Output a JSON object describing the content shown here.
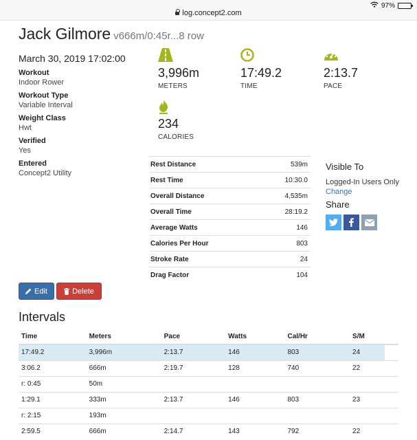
{
  "browser": {
    "url": "log.concept2.com",
    "battery": "97%",
    "battery_level": 0.97
  },
  "header": {
    "name": "Jack Gilmore",
    "subtitle": "v666m/0:45r...8 row"
  },
  "workout": {
    "date": "March 30, 2019 17:02:00",
    "details": [
      {
        "label": "Workout",
        "value": "Indoor Rower"
      },
      {
        "label": "Workout Type",
        "value": "Variable Interval"
      },
      {
        "label": "Weight Class",
        "value": "Hwt"
      },
      {
        "label": "Verified",
        "value": "Yes"
      },
      {
        "label": "Entered",
        "value": "Concept2 Utility"
      }
    ]
  },
  "stats": {
    "meters": {
      "value": "3,996m",
      "label": "METERS",
      "icon": "road-icon"
    },
    "time": {
      "value": "17:49.2",
      "label": "TIME",
      "icon": "clock-icon"
    },
    "pace": {
      "value": "2:13.7",
      "label": "PACE",
      "icon": "speedometer-icon"
    },
    "calories": {
      "value": "234",
      "label": "CALORIES",
      "icon": "flame-icon"
    },
    "accent": "#a5b51c"
  },
  "metrics": [
    {
      "label": "Rest Distance",
      "value": "539m"
    },
    {
      "label": "Rest Time",
      "value": "10:30.0"
    },
    {
      "label": "Overall Distance",
      "value": "4,535m"
    },
    {
      "label": "Overall Time",
      "value": "28:19.2"
    },
    {
      "label": "Average Watts",
      "value": "146"
    },
    {
      "label": "Calories Per Hour",
      "value": "803"
    },
    {
      "label": "Stroke Rate",
      "value": "24"
    },
    {
      "label": "Drag Factor",
      "value": "104"
    }
  ],
  "visibility": {
    "heading": "Visible To",
    "value": "Logged-In Users Only",
    "change_label": "Change",
    "share_heading": "Share",
    "share": [
      {
        "icon": "twitter-icon",
        "color": "#55acee"
      },
      {
        "icon": "facebook-icon",
        "color": "#3b5998"
      },
      {
        "icon": "email-icon",
        "color": "#8fa0b3"
      }
    ]
  },
  "actions": {
    "edit_label": "Edit",
    "delete_label": "Delete"
  },
  "intervals": {
    "title": "Intervals",
    "columns": [
      "Time",
      "Meters",
      "Pace",
      "Watts",
      "Cal/Hr",
      "S/M"
    ],
    "rows": [
      [
        "17:49.2",
        "3,996m",
        "2:13.7",
        "146",
        "803",
        "24"
      ],
      [
        "3:06.2",
        "666m",
        "2:19.7",
        "128",
        "740",
        "22"
      ],
      [
        "r: 0:45",
        "50m",
        "",
        "",
        "",
        ""
      ],
      [
        "1:29.1",
        "333m",
        "2:13.7",
        "146",
        "803",
        "23"
      ],
      [
        "r: 2:15",
        "193m",
        "",
        "",
        "",
        ""
      ],
      [
        "2:59.5",
        "666m",
        "2:14.7",
        "143",
        "792",
        "22"
      ]
    ]
  }
}
